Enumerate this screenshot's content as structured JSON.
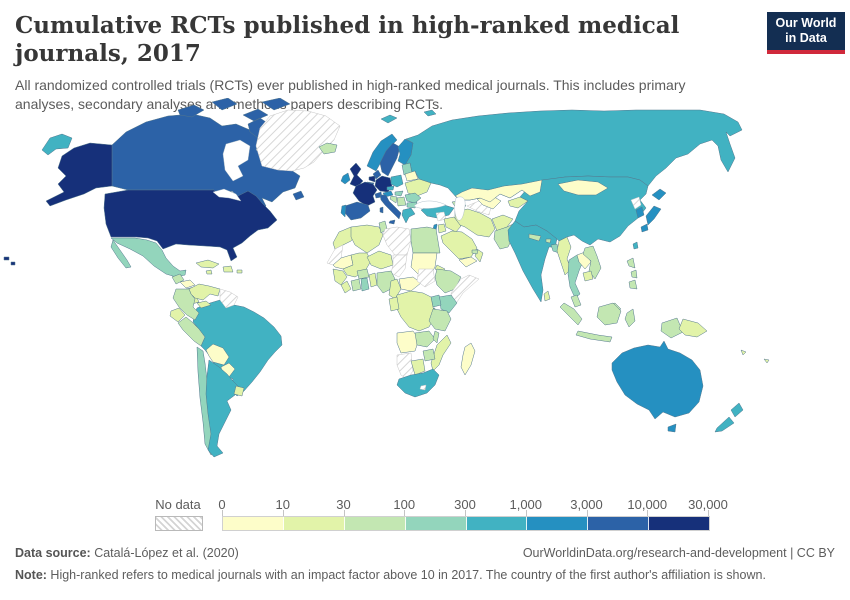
{
  "header": {
    "title": "Cumulative RCTs published in high-ranked medical journals, 2017",
    "subtitle": "All randomized controlled trials (RCTs) ever published in high-ranked medical journals. This includes primary analyses, secondary analyses and methods papers describing RCTs.",
    "logo": {
      "line1": "Our World",
      "line2": "in Data",
      "bg_color": "#132e52",
      "accent_color": "#d0293b"
    }
  },
  "legend": {
    "no_data_label": "No data",
    "tick_labels": [
      "0",
      "10",
      "30",
      "100",
      "300",
      "1,000",
      "3,000",
      "10,000",
      "30,000"
    ]
  },
  "footer": {
    "source_label": "Data source:",
    "source_text": " Catalá-López et al. (2020)",
    "link_text": "OurWorldinData.org/research-and-development | CC BY",
    "note_label": "Note:",
    "note_text": " High-ranked refers to medical journals with an impact factor above 10 in 2017. The country of the first author's affiliation is shown."
  },
  "chart_data": {
    "type": "choropleth_map",
    "title": "Cumulative RCTs published in high-ranked medical journals, 2017",
    "year": "2017",
    "unit": "cumulative RCTs per country (log-binned)",
    "bin_labels": [
      "0-10",
      "10-30",
      "30-100",
      "100-300",
      "300-1,000",
      "1,000-3,000",
      "3,000-10,000",
      "10,000-30,000"
    ],
    "bin_colors": [
      "#fdfdc9",
      "#e2f3a9",
      "#c3e7b2",
      "#93d5bc",
      "#41b2c2",
      "#2590c1",
      "#2c62a7",
      "#16307a"
    ],
    "no_data_color": "hatched",
    "country_bins": {
      "United States": 7,
      "Canada": 6,
      "Greenland": "no-data",
      "Iceland": 2,
      "Mexico": 3,
      "Guatemala": 2,
      "Honduras": 0,
      "Nicaragua": 0,
      "Costa Rica": 1,
      "Panama": 1,
      "Cuba": 1,
      "Haiti and Dominican Republic": 1,
      "Jamaica": 1,
      "Puerto Rico": 1,
      "Venezuela": 1,
      "Guyana, Suriname and French Guiana": "no-data",
      "Colombia": 2,
      "Ecuador": 1,
      "Peru": 2,
      "Brazil": 4,
      "Bolivia": 0,
      "Paraguay": 0,
      "Chile": 3,
      "Argentina": 4,
      "Uruguay": 1,
      "United Kingdom": 7,
      "Ireland": 5,
      "Norway": 5,
      "Sweden": 6,
      "Finland": 5,
      "Denmark": 6,
      "Germany": 7,
      "Netherlands": 7,
      "Belgium": 6,
      "France": 7,
      "Spain": 6,
      "Portugal": 5,
      "Switzerland": 6,
      "Austria": 5,
      "Czechia": 4,
      "Poland": 4,
      "Italy": 6,
      "Baltic states": 3,
      "Belarus": 0,
      "Ukraine": 1,
      "Romania": 3,
      "Hungary": 3,
      "Serbia": 2,
      "Croatia and Bosnia": 2,
      "Bulgaria": 3,
      "Greece": 4,
      "Russia": 4,
      "Svalbard": 4,
      "Turkey": 4,
      "Caucasus": 2,
      "Syria": "no-data",
      "Iraq": 1,
      "Israel": 5,
      "Jordan": 1,
      "Saudi Arabia": 1,
      "Yemen": 0,
      "Oman": 1,
      "United Arab Emirates": 2,
      "Iran": 1,
      "Afghanistan": 1,
      "Pakistan": 2,
      "Turkmenistan": "no-data",
      "Uzbekistan": 0,
      "Kazakhstan": 0,
      "Kyrgyzstan and Tajikistan": 1,
      "India": 4,
      "Sri Lanka": 1,
      "Nepal": 2,
      "Bhutan": 2,
      "Bangladesh": 3,
      "Myanmar": 1,
      "China": 4,
      "Mongolia": 0,
      "Taiwan": 4,
      "North Korea": "no-data",
      "South Korea": 5,
      "Japan": 5,
      "Thailand": 3,
      "Laos": 0,
      "Vietnam": 2,
      "Cambodia": 1,
      "Malaysia": 2,
      "Indonesia": 2,
      "Papua New Guinea": 1,
      "Philippines": 2,
      "Fiji": 1,
      "Australia": 5,
      "New Zealand": 4,
      "Morocco": 1,
      "Western Sahara": "no-data",
      "Algeria": 1,
      "Tunisia": 2,
      "Libya": "no-data",
      "Egypt": 2,
      "Mauritania": 0,
      "Mali": 1,
      "Niger": 1,
      "Chad": "no-data",
      "Sudan": 0,
      "Eritrea": 1,
      "Senegal": 1,
      "Sierra Leone and Liberia": 1,
      "Ivory Coast": 2,
      "Ghana": 3,
      "Burkina Faso": 2,
      "Togo and Benin": 1,
      "Nigeria": 2,
      "Cameroon": 1,
      "Central African Republic": 0,
      "South Sudan": "no-data",
      "Ethiopia": 2,
      "Somalia": "no-data",
      "Kenya": 3,
      "Uganda": 3,
      "Rwanda and Burundi": 2,
      "Democratic Republic of Congo": 1,
      "Gabon and Congo": 1,
      "Tanzania": 2,
      "Angola": 0,
      "Zambia": 2,
      "Malawi": 2,
      "Mozambique": 1,
      "Zimbabwe": 2,
      "Namibia": "no-data",
      "Botswana": 1,
      "South Africa": 4,
      "Lesotho": "no-data",
      "Madagascar": 0
    }
  }
}
